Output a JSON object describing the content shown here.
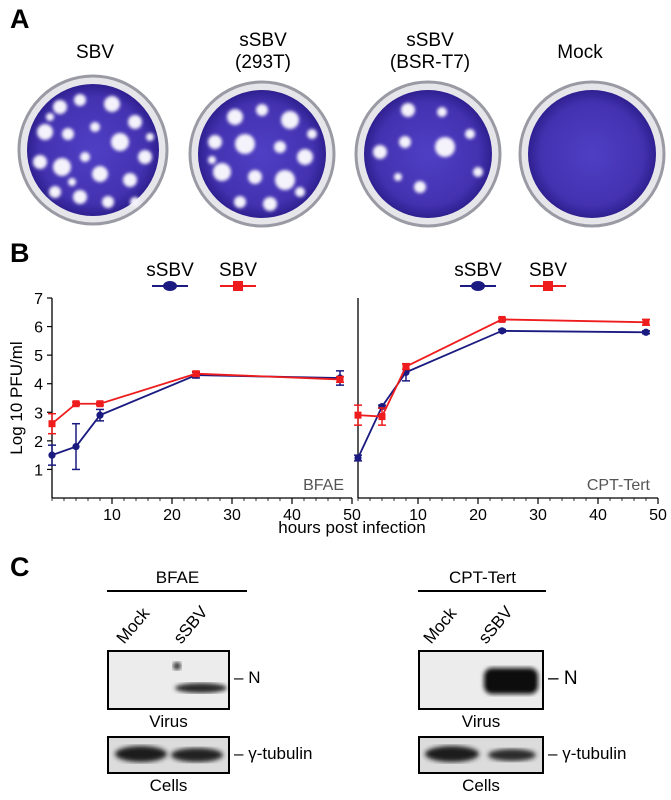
{
  "panels": {
    "a": "A",
    "b": "B",
    "c": "C"
  },
  "panel_a": {
    "dishes": [
      {
        "label_lines": [
          "SBV"
        ],
        "plaques": "many"
      },
      {
        "label_lines": [
          "sSBV",
          "(293T)"
        ],
        "plaques": "many"
      },
      {
        "label_lines": [
          "sSBV",
          "(BSR-T7)"
        ],
        "plaques": "few"
      },
      {
        "label_lines": [
          "Mock"
        ],
        "plaques": "none"
      }
    ],
    "colors": {
      "stain": "#4a38b8",
      "stain_dark": "#2a1a8a",
      "plaque": "#f2f0fa"
    }
  },
  "chart_data": [
    {
      "type": "line",
      "annotation": "BFAE",
      "ylabel": "Log 10 PFU/ml",
      "xlabel": "hours post infection",
      "xlim": [
        0,
        50
      ],
      "ylim": [
        0,
        7
      ],
      "xticks": [
        10,
        20,
        30,
        40,
        50
      ],
      "yticks": [
        1,
        2,
        3,
        4,
        5,
        6,
        7
      ],
      "legend": [
        "sSBV",
        "SBV"
      ],
      "series": [
        {
          "name": "sSBV",
          "color": "#1a1a80",
          "marker": "circle",
          "x": [
            0,
            4,
            8,
            24,
            48
          ],
          "y": [
            1.5,
            1.8,
            2.9,
            4.3,
            4.2
          ],
          "err": [
            0.35,
            0.8,
            0.2,
            0.1,
            0.25
          ]
        },
        {
          "name": "SBV",
          "color": "#ee1c1c",
          "marker": "square",
          "x": [
            0,
            4,
            8,
            24,
            48
          ],
          "y": [
            2.6,
            3.3,
            3.3,
            4.35,
            4.15
          ],
          "err": [
            0.35,
            0.05,
            0.05,
            0.08,
            0.1
          ]
        }
      ]
    },
    {
      "type": "line",
      "annotation": "CPT-Tert",
      "xlabel": "hours post infection",
      "xlim": [
        0,
        50
      ],
      "ylim": [
        0,
        7
      ],
      "xticks": [
        10,
        20,
        30,
        40,
        50
      ],
      "legend": [
        "sSBV",
        "SBV"
      ],
      "series": [
        {
          "name": "sSBV",
          "color": "#1a1a80",
          "marker": "circle",
          "x": [
            0,
            4,
            8,
            24,
            48
          ],
          "y": [
            1.4,
            3.2,
            4.4,
            5.85,
            5.8
          ],
          "err": [
            0.1,
            0.05,
            0.3,
            0.05,
            0.05
          ]
        },
        {
          "name": "SBV",
          "color": "#ee1c1c",
          "marker": "square",
          "x": [
            0,
            4,
            8,
            24,
            48
          ],
          "y": [
            2.9,
            2.85,
            4.6,
            6.25,
            6.15
          ],
          "err": [
            0.35,
            0.3,
            0.1,
            0.05,
            0.1
          ]
        }
      ]
    }
  ],
  "panel_c": {
    "blots": [
      {
        "title": "BFAE",
        "lanes": [
          "Mock",
          "sSBV"
        ],
        "top_band": "N",
        "top_under": "Virus",
        "bottom_band": "γ-tubulin",
        "bottom_under": "Cells"
      },
      {
        "title": "CPT-Tert",
        "lanes": [
          "Mock",
          "sSBV"
        ],
        "top_band": "N",
        "top_under": "Virus",
        "bottom_band": "γ-tubulin",
        "bottom_under": "Cells"
      }
    ]
  }
}
